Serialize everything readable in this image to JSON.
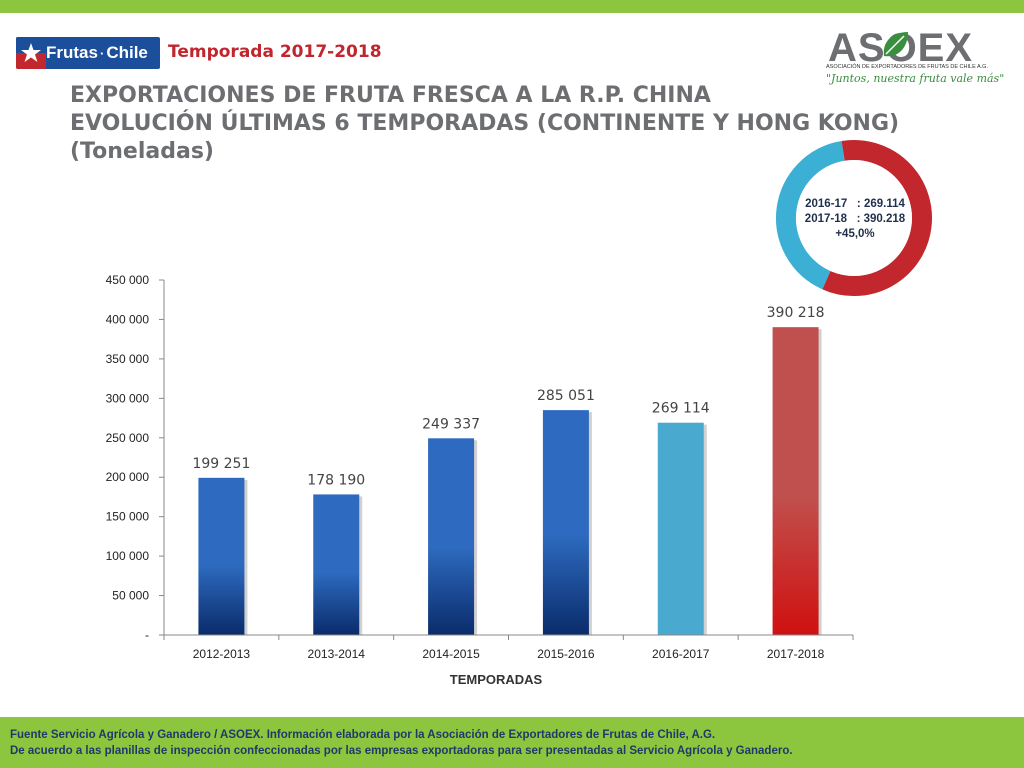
{
  "header": {
    "logo_text": "Frutas de Chile",
    "logo_display": "Frutas",
    "logo_display_2": "Chile",
    "season": "Temporada 2017-2018",
    "asoex_name": "ASOEX",
    "asoex_subtitle": "ASOCIACIÓN DE EXPORTADORES DE FRUTAS DE CHILE A.G.",
    "asoex_slogan": "\"Juntos, nuestra fruta vale más\""
  },
  "title": {
    "line1": "EXPORTACIONES DE FRUTA FRESCA A LA R.P. CHINA",
    "line2": "EVOLUCIÓN ÚLTIMAS 6 TEMPORADAS (CONTINENTE Y HONG KONG)",
    "line3": "(Toneladas)"
  },
  "donut": {
    "line1": "2016-17   : 269.114",
    "line2": "2017-18   : 390.218",
    "line3": "+45,0%",
    "values": [
      269114,
      390218
    ],
    "colors": [
      "#3bb0d4",
      "#c1272d"
    ]
  },
  "chart_data": {
    "type": "bar",
    "categories": [
      "2012-2013",
      "2013-2014",
      "2014-2015",
      "2015-2016",
      "2016-2017",
      "2017-2018"
    ],
    "values": [
      199251,
      178190,
      249337,
      285051,
      269114,
      390218
    ],
    "data_labels": [
      "199 251",
      "178 190",
      "249 337",
      "285 051",
      "269 114",
      "390 218"
    ],
    "bar_colors": [
      "#2e6bc0",
      "#2e6bc0",
      "#2e6bc0",
      "#2e6bc0",
      "#4aa9cf",
      "#c0504d"
    ],
    "bar_bottom_colors": [
      "#0a2c6b",
      "#0a2c6b",
      "#0a2c6b",
      "#0a2c6b",
      "#4aa9cf",
      "#d01010"
    ],
    "xlabel": "TEMPORADAS",
    "ylabel": "",
    "ylim": [
      0,
      450000
    ],
    "yticks": [
      0,
      50000,
      100000,
      150000,
      200000,
      250000,
      300000,
      350000,
      400000,
      450000
    ],
    "ytick_labels": [
      "-",
      "50 000",
      "100 000",
      "150 000",
      "200 000",
      "250 000",
      "300 000",
      "350 000",
      "400 000",
      "450 000"
    ],
    "grid": false,
    "legend": "none"
  },
  "footer": {
    "line1": "Fuente Servicio Agrícola y Ganadero / ASOEX. Información elaborada por la Asociación de Exportadores de  Frutas de Chile, A.G.",
    "line2": "De acuerdo a las planillas de inspección confeccionadas por las empresas exportadoras  para ser presentadas al Servicio Agrícola y Ganadero."
  }
}
